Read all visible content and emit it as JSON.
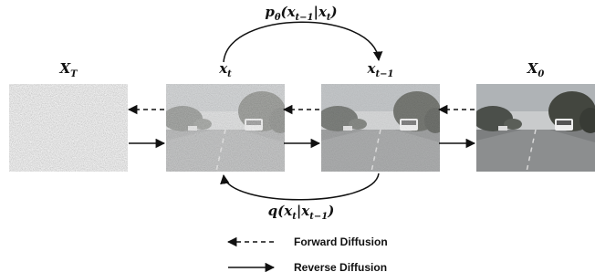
{
  "nodes": [
    {
      "main": "X",
      "sub": "T"
    },
    {
      "main": "x",
      "sub": "t"
    },
    {
      "main": "x",
      "sub": "t−1"
    },
    {
      "main": "X",
      "sub": "0"
    }
  ],
  "reverse_step": [
    {
      "text": "p",
      "sub": "θ"
    },
    {
      "text": "(x",
      "sub": "t−1"
    },
    {
      "text": "|x",
      "sub": "t"
    },
    {
      "text": ")"
    }
  ],
  "forward_step": [
    {
      "text": "q(x",
      "sub": "t"
    },
    {
      "text": "|x",
      "sub": "t−1"
    },
    {
      "text": ")"
    }
  ],
  "legend": {
    "forward": "Forward Diffusion",
    "reverse": "Reverse Diffusion"
  }
}
